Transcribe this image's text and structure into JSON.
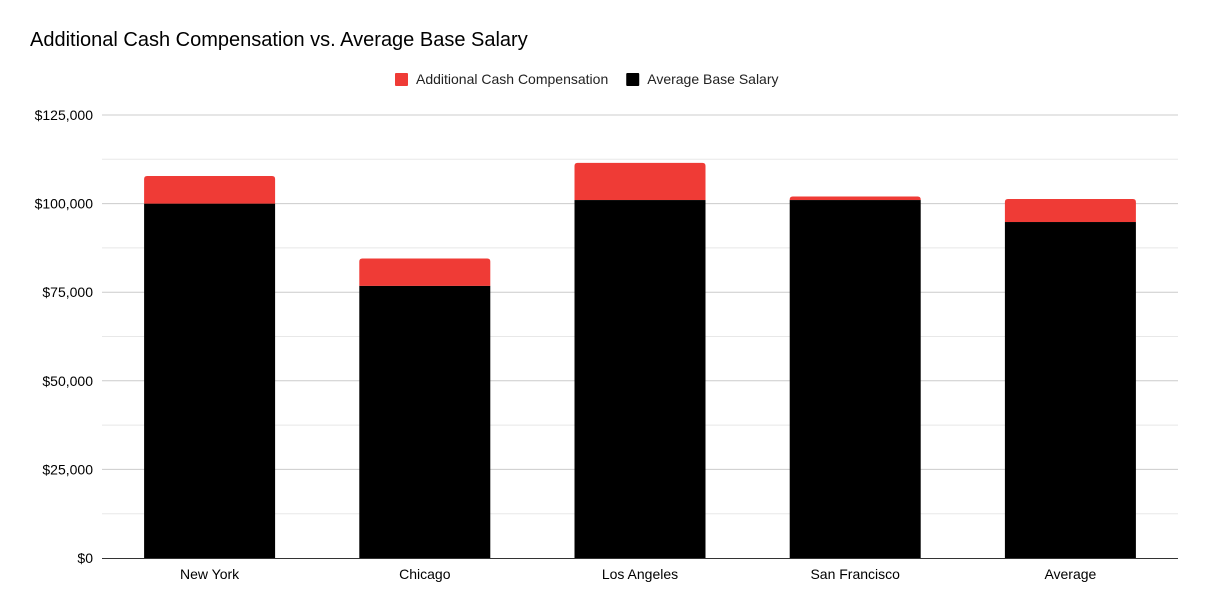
{
  "chart_data": {
    "type": "bar",
    "stacked": true,
    "title": "Additional Cash Compensation vs. Average Base Salary",
    "xlabel": "",
    "ylabel": "",
    "categories": [
      "New York",
      "Chicago",
      "Los Angeles",
      "San Francisco",
      "Average"
    ],
    "series": [
      {
        "name": "Average Base Salary",
        "color": "#000000",
        "values": [
          100000,
          76800,
          101000,
          101000,
          94800
        ]
      },
      {
        "name": "Additional Cash Compensation",
        "color": "#ef3b36",
        "values": [
          7800,
          7700,
          10500,
          1000,
          6500
        ]
      }
    ],
    "legend_order": [
      "Additional Cash Compensation",
      "Average Base Salary"
    ],
    "ylim": [
      0,
      125000
    ],
    "yticks": [
      0,
      25000,
      50000,
      75000,
      100000,
      125000
    ],
    "ytick_labels": [
      "$0",
      "$25,000",
      "$50,000",
      "$75,000",
      "$100,000",
      "$125,000"
    ],
    "legend_position": "top-center",
    "grid": true
  }
}
